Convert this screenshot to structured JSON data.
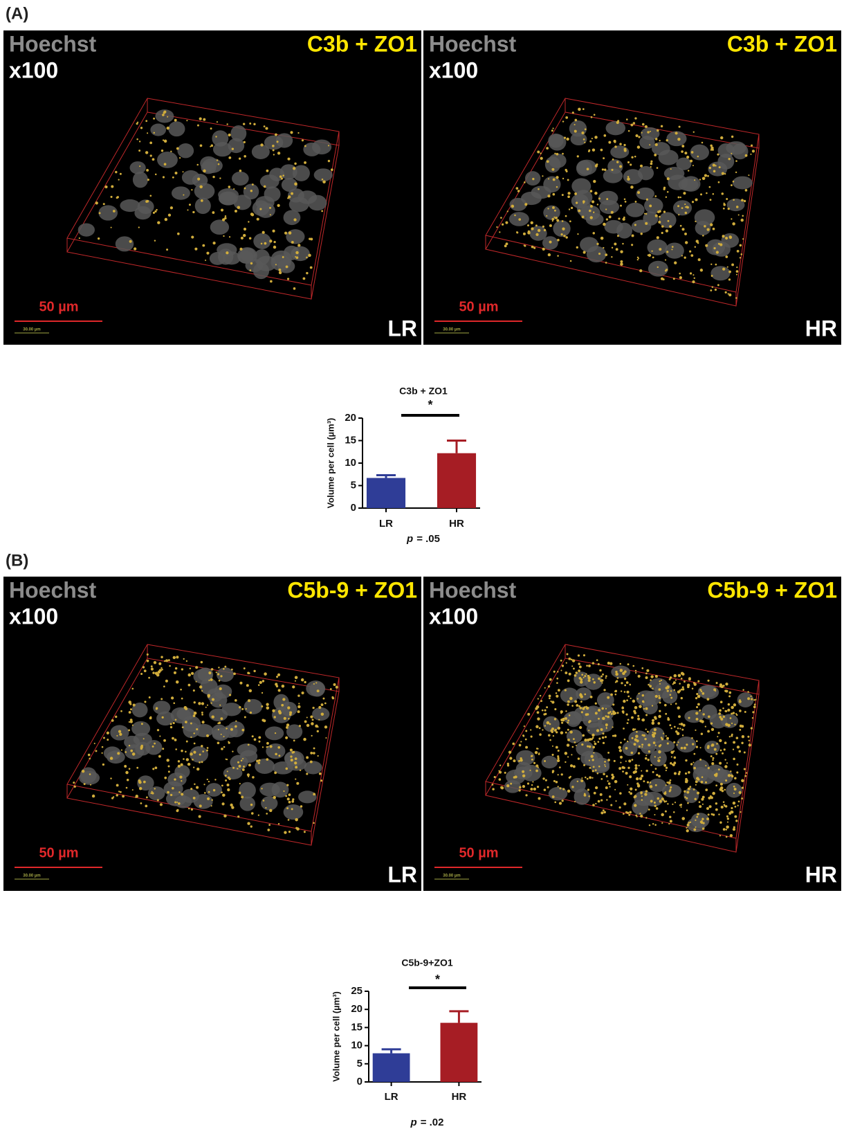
{
  "panels": [
    {
      "label": "(A)",
      "images": [
        {
          "stain": "Hoechst",
          "magnification": "x100",
          "marker": "C3b + ZO1",
          "scale": "50 µm",
          "scale_small": "30.00 µm",
          "group": "LR"
        },
        {
          "stain": "Hoechst",
          "magnification": "x100",
          "marker": "C3b + ZO1",
          "scale": "50 µm",
          "scale_small": "30.00 µm",
          "group": "HR"
        }
      ]
    },
    {
      "label": "(B)",
      "images": [
        {
          "stain": "Hoechst",
          "magnification": "x100",
          "marker": "C5b-9 + ZO1",
          "scale": "50 µm",
          "scale_small": "30.00 µm",
          "group": "LR"
        },
        {
          "stain": "Hoechst",
          "magnification": "x100",
          "marker": "C5b-9 + ZO1",
          "scale": "50 µm",
          "scale_small": "30.00 µm",
          "group": "HR"
        }
      ]
    }
  ],
  "chart_data": [
    {
      "type": "bar",
      "title": "C3b + ZO1",
      "ylabel": "Volume per cell (µm³)",
      "categories": [
        "LR",
        "HR"
      ],
      "values": [
        6.7,
        12.2
      ],
      "errors": [
        0.6,
        2.8
      ],
      "colors": [
        "#2f3d97",
        "#a61d24"
      ],
      "ylim": [
        0,
        20
      ],
      "yticks": [
        0,
        5,
        10,
        15,
        20
      ],
      "significance": "*",
      "p_symbol": "p",
      "p_text": "= .05"
    },
    {
      "type": "bar",
      "title": "C5b-9+ZO1",
      "ylabel": "Volume per cell (µm³)",
      "categories": [
        "LR",
        "HR"
      ],
      "values": [
        7.9,
        16.3
      ],
      "errors": [
        1.1,
        3.2
      ],
      "colors": [
        "#2f3d97",
        "#a61d24"
      ],
      "ylim": [
        0,
        25
      ],
      "yticks": [
        0,
        5,
        10,
        15,
        20,
        25
      ],
      "significance": "*",
      "p_symbol": "p",
      "p_text": "= .02"
    }
  ]
}
